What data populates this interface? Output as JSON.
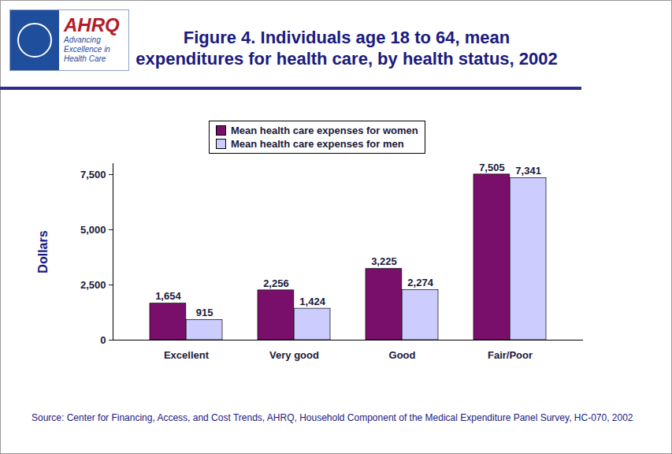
{
  "chart_data": {
    "type": "bar",
    "title": "Figure 4. Individuals age 18 to 64, mean expenditures for health care, by health status, 2002",
    "annotations": [
      "AHRQ",
      "Advancing Excellence in Health Care"
    ],
    "source": "Source: Center for Financing, Access, and Cost Trends, AHRQ, Household Component of the Medical Expenditure Panel Survey, HC-070, 2002",
    "ylabel": "Dollars",
    "categories": [
      "Excellent",
      "Very good",
      "Good",
      "Fair/Poor"
    ],
    "series": [
      {
        "name": "Mean health care expenses for women",
        "color": "#7a0f6b",
        "values": [
          1654,
          2256,
          3225,
          7505
        ],
        "value_labels": [
          "1,654",
          "2,256",
          "3,225",
          "7,505"
        ]
      },
      {
        "name": "Mean health care expenses for men",
        "color": "#ccccff",
        "values": [
          915,
          1424,
          2274,
          7341
        ],
        "value_labels": [
          "915",
          "1,424",
          "2,274",
          "7,341"
        ]
      }
    ],
    "ylim": [
      0,
      8000
    ],
    "yticks": [
      0,
      {
        "value": 2500,
        "label": "2,500"
      },
      {
        "value": 5000,
        "label": "5,000"
      },
      {
        "value": 7500,
        "label": "7,500"
      }
    ],
    "grid": false,
    "legend": "top",
    "data_labels": true
  }
}
